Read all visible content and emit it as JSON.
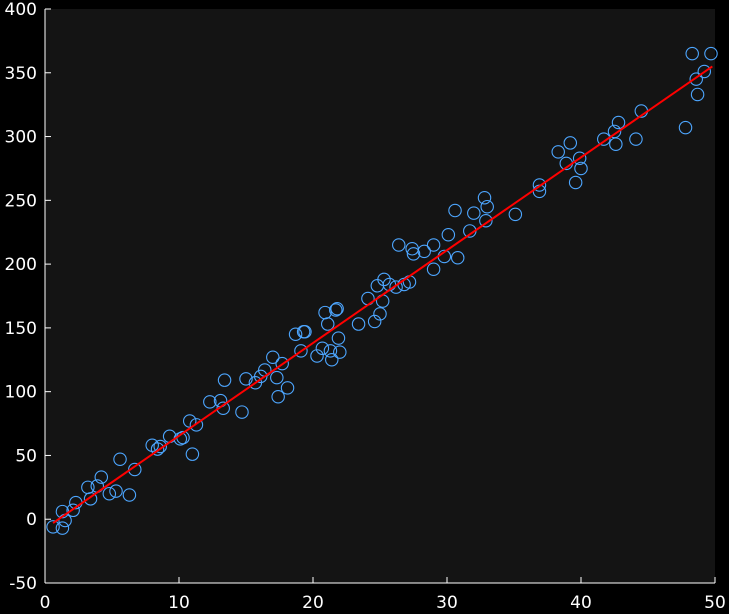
{
  "chart_data": {
    "type": "scatter",
    "title": "",
    "xlabel": "",
    "ylabel": "",
    "xlim": [
      0,
      50
    ],
    "ylim": [
      -50,
      400
    ],
    "xticks": [
      0,
      10,
      20,
      30,
      40,
      50
    ],
    "yticks": [
      -50,
      0,
      50,
      100,
      150,
      200,
      250,
      300,
      350,
      400
    ],
    "xtick_labels": [
      "0",
      "10",
      "20",
      "30",
      "40",
      "50"
    ],
    "ytick_labels": [
      "-50",
      "0",
      "50",
      "100",
      "150",
      "200",
      "250",
      "300",
      "350",
      "400"
    ],
    "grid": false,
    "colors": {
      "figure_background": "#000000",
      "axes_background": "#141414",
      "axis": "#ffffff",
      "marker": "#4da6ff",
      "fit_line": "#ff0000"
    },
    "series": [
      {
        "kind": "scatter",
        "x": [
          0.6,
          1.3,
          1.3,
          1.5,
          2.1,
          2.3,
          3.2,
          3.4,
          3.9,
          4.2,
          4.8,
          5.3,
          5.6,
          6.3,
          6.7,
          8.0,
          8.4,
          8.6,
          9.3,
          10.1,
          10.3,
          10.8,
          11.0,
          11.3,
          12.3,
          13.1,
          13.3,
          13.4,
          14.7,
          15.0,
          15.7,
          16.1,
          16.4,
          17.0,
          17.3,
          17.4,
          17.7,
          18.1,
          18.7,
          19.1,
          19.4,
          19.3,
          20.3,
          20.7,
          20.9,
          21.1,
          21.4,
          21.3,
          21.7,
          21.8,
          21.9,
          22.0,
          23.4,
          24.1,
          24.6,
          24.8,
          25.0,
          25.2,
          25.3,
          25.7,
          26.2,
          26.4,
          26.8,
          27.2,
          27.4,
          27.5,
          28.3,
          29.0,
          29.0,
          29.8,
          30.1,
          30.6,
          30.8,
          31.7,
          32.0,
          32.8,
          32.9,
          33.0,
          35.1,
          36.9,
          36.9,
          38.3,
          38.9,
          39.2,
          39.6,
          39.9,
          40.0,
          41.7,
          42.5,
          42.6,
          42.8,
          44.1,
          44.5,
          47.8,
          48.3,
          48.6,
          48.7,
          49.2,
          49.7
        ],
        "y": [
          -6,
          -7,
          6,
          -1,
          7,
          13,
          25,
          16,
          26,
          33,
          20,
          22,
          47,
          19,
          39,
          58,
          55,
          57,
          65,
          63,
          64,
          77,
          51,
          74,
          92,
          93,
          87,
          109,
          84,
          110,
          107,
          112,
          117,
          127,
          111,
          96,
          122,
          103,
          145,
          132,
          147,
          147,
          128,
          134,
          162,
          153,
          125,
          132,
          164,
          165,
          142,
          131,
          153,
          173,
          155,
          183,
          161,
          171,
          188,
          184,
          182,
          215,
          184,
          186,
          212,
          208,
          210,
          196,
          215,
          206,
          223,
          242,
          205,
          226,
          240,
          252,
          234,
          245,
          239,
          262,
          257,
          288,
          279,
          295,
          264,
          283,
          275,
          298,
          304,
          294,
          311,
          298,
          320,
          307,
          365,
          345,
          333,
          351,
          365
        ]
      },
      {
        "kind": "line",
        "x": [
          0.6,
          49.8
        ],
        "y": [
          -3,
          355
        ]
      }
    ]
  }
}
